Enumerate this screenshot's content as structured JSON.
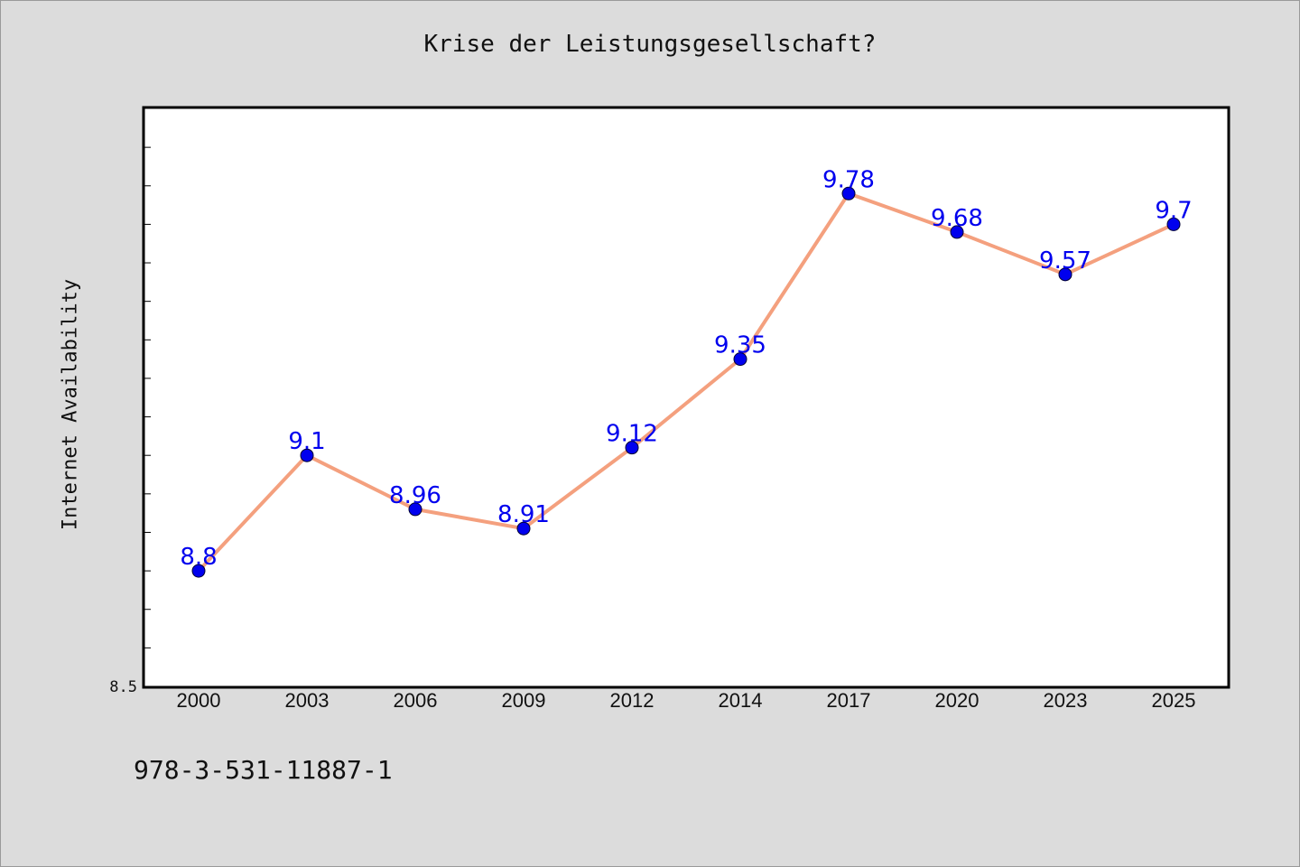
{
  "chart_data": {
    "type": "line",
    "title": "Krise der Leistungsgesellschaft?",
    "xlabel": "",
    "ylabel": "Internet Availability",
    "categories": [
      "2000",
      "2003",
      "2006",
      "2009",
      "2012",
      "2014",
      "2017",
      "2020",
      "2023",
      "2025"
    ],
    "series": [
      {
        "values": [
          8.8,
          9.1,
          8.96,
          8.91,
          9.12,
          9.35,
          9.78,
          9.68,
          9.57,
          9.7
        ],
        "data_labels": [
          "8.8",
          "9.1",
          "8.96",
          "8.91",
          "9.12",
          "9.35",
          "9.78",
          "9.68",
          "9.57",
          "9.7"
        ]
      }
    ],
    "ylim": [
      8.5,
      10.0
    ],
    "y_tick_labels": [
      "8.5"
    ],
    "grid": false,
    "colors": {
      "line": "#f4a07e",
      "marker": "#0000ee",
      "data_label": "#0000ee",
      "background": "#dcdcdc",
      "plot_area": "#ffffff"
    }
  },
  "footer": {
    "isbn": "978-3-531-11887-1"
  }
}
